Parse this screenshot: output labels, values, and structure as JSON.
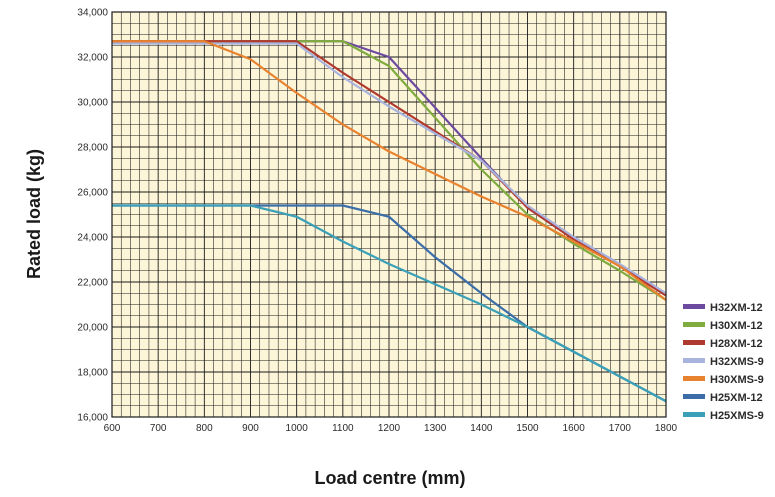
{
  "chart_data": {
    "type": "line",
    "title": "",
    "xlabel": "Load centre (mm)",
    "ylabel": "Rated load (kg)",
    "xlim": [
      600,
      1800
    ],
    "ylim": [
      16000,
      34000
    ],
    "x_ticks": [
      600,
      700,
      800,
      900,
      1000,
      1100,
      1200,
      1300,
      1400,
      1500,
      1600,
      1700,
      1800
    ],
    "y_ticks": [
      16000,
      18000,
      20000,
      22000,
      24000,
      26000,
      28000,
      30000,
      32000,
      34000
    ],
    "y_tick_labels": [
      "16,000",
      "18,000",
      "20,000",
      "22,000",
      "24,000",
      "26,000",
      "28,000",
      "30,000",
      "32,000",
      "34,000"
    ],
    "grid": true,
    "plot_background": "#fdf5d8",
    "grid_color": "#1a1a1a",
    "legend_position": "right",
    "series": [
      {
        "name": "H32XM-12",
        "color": "#6b4aa0",
        "x": [
          600,
          1000,
          1100,
          1200,
          1400,
          1500,
          1600,
          1700,
          1800
        ],
        "y": [
          32700,
          32700,
          32700,
          32000,
          27500,
          25300,
          23900,
          22700,
          21400
        ]
      },
      {
        "name": "H30XM-12",
        "color": "#7fab3f",
        "x": [
          600,
          1000,
          1100,
          1200,
          1400,
          1500,
          1600,
          1700,
          1800
        ],
        "y": [
          32700,
          32700,
          32700,
          31600,
          27000,
          25000,
          23700,
          22500,
          21200
        ]
      },
      {
        "name": "H28XM-12",
        "color": "#b0392f",
        "x": [
          600,
          1000,
          1100,
          1200,
          1300,
          1400,
          1500,
          1600,
          1700,
          1800
        ],
        "y": [
          32700,
          32700,
          31300,
          30000,
          28700,
          27400,
          25300,
          23900,
          22700,
          21400
        ]
      },
      {
        "name": "H32XMS-9",
        "color": "#a9b4de",
        "x": [
          600,
          1000,
          1100,
          1200,
          1300,
          1400,
          1500,
          1600,
          1700,
          1800
        ],
        "y": [
          32600,
          32600,
          31100,
          29800,
          28600,
          27400,
          25400,
          24000,
          22800,
          21500
        ]
      },
      {
        "name": "H30XMS-9",
        "color": "#e8822e",
        "x": [
          600,
          800,
          900,
          1000,
          1100,
          1200,
          1300,
          1400,
          1500,
          1600,
          1700,
          1800
        ],
        "y": [
          32700,
          32700,
          31900,
          30400,
          29000,
          27800,
          26800,
          25800,
          24900,
          23800,
          22700,
          21200
        ]
      },
      {
        "name": "H25XM-12",
        "color": "#3b6ea8",
        "x": [
          600,
          1000,
          1100,
          1200,
          1300,
          1400,
          1500,
          1600,
          1700,
          1800
        ],
        "y": [
          25400,
          25400,
          25400,
          24900,
          23100,
          21500,
          20000,
          18900,
          17800,
          16700
        ]
      },
      {
        "name": "H25XMS-9",
        "color": "#3aa0b8",
        "x": [
          600,
          900,
          1000,
          1100,
          1200,
          1300,
          1400,
          1500,
          1600,
          1700,
          1800
        ],
        "y": [
          25400,
          25400,
          24900,
          23800,
          22800,
          21900,
          21000,
          20000,
          18900,
          17800,
          16700
        ]
      }
    ]
  }
}
